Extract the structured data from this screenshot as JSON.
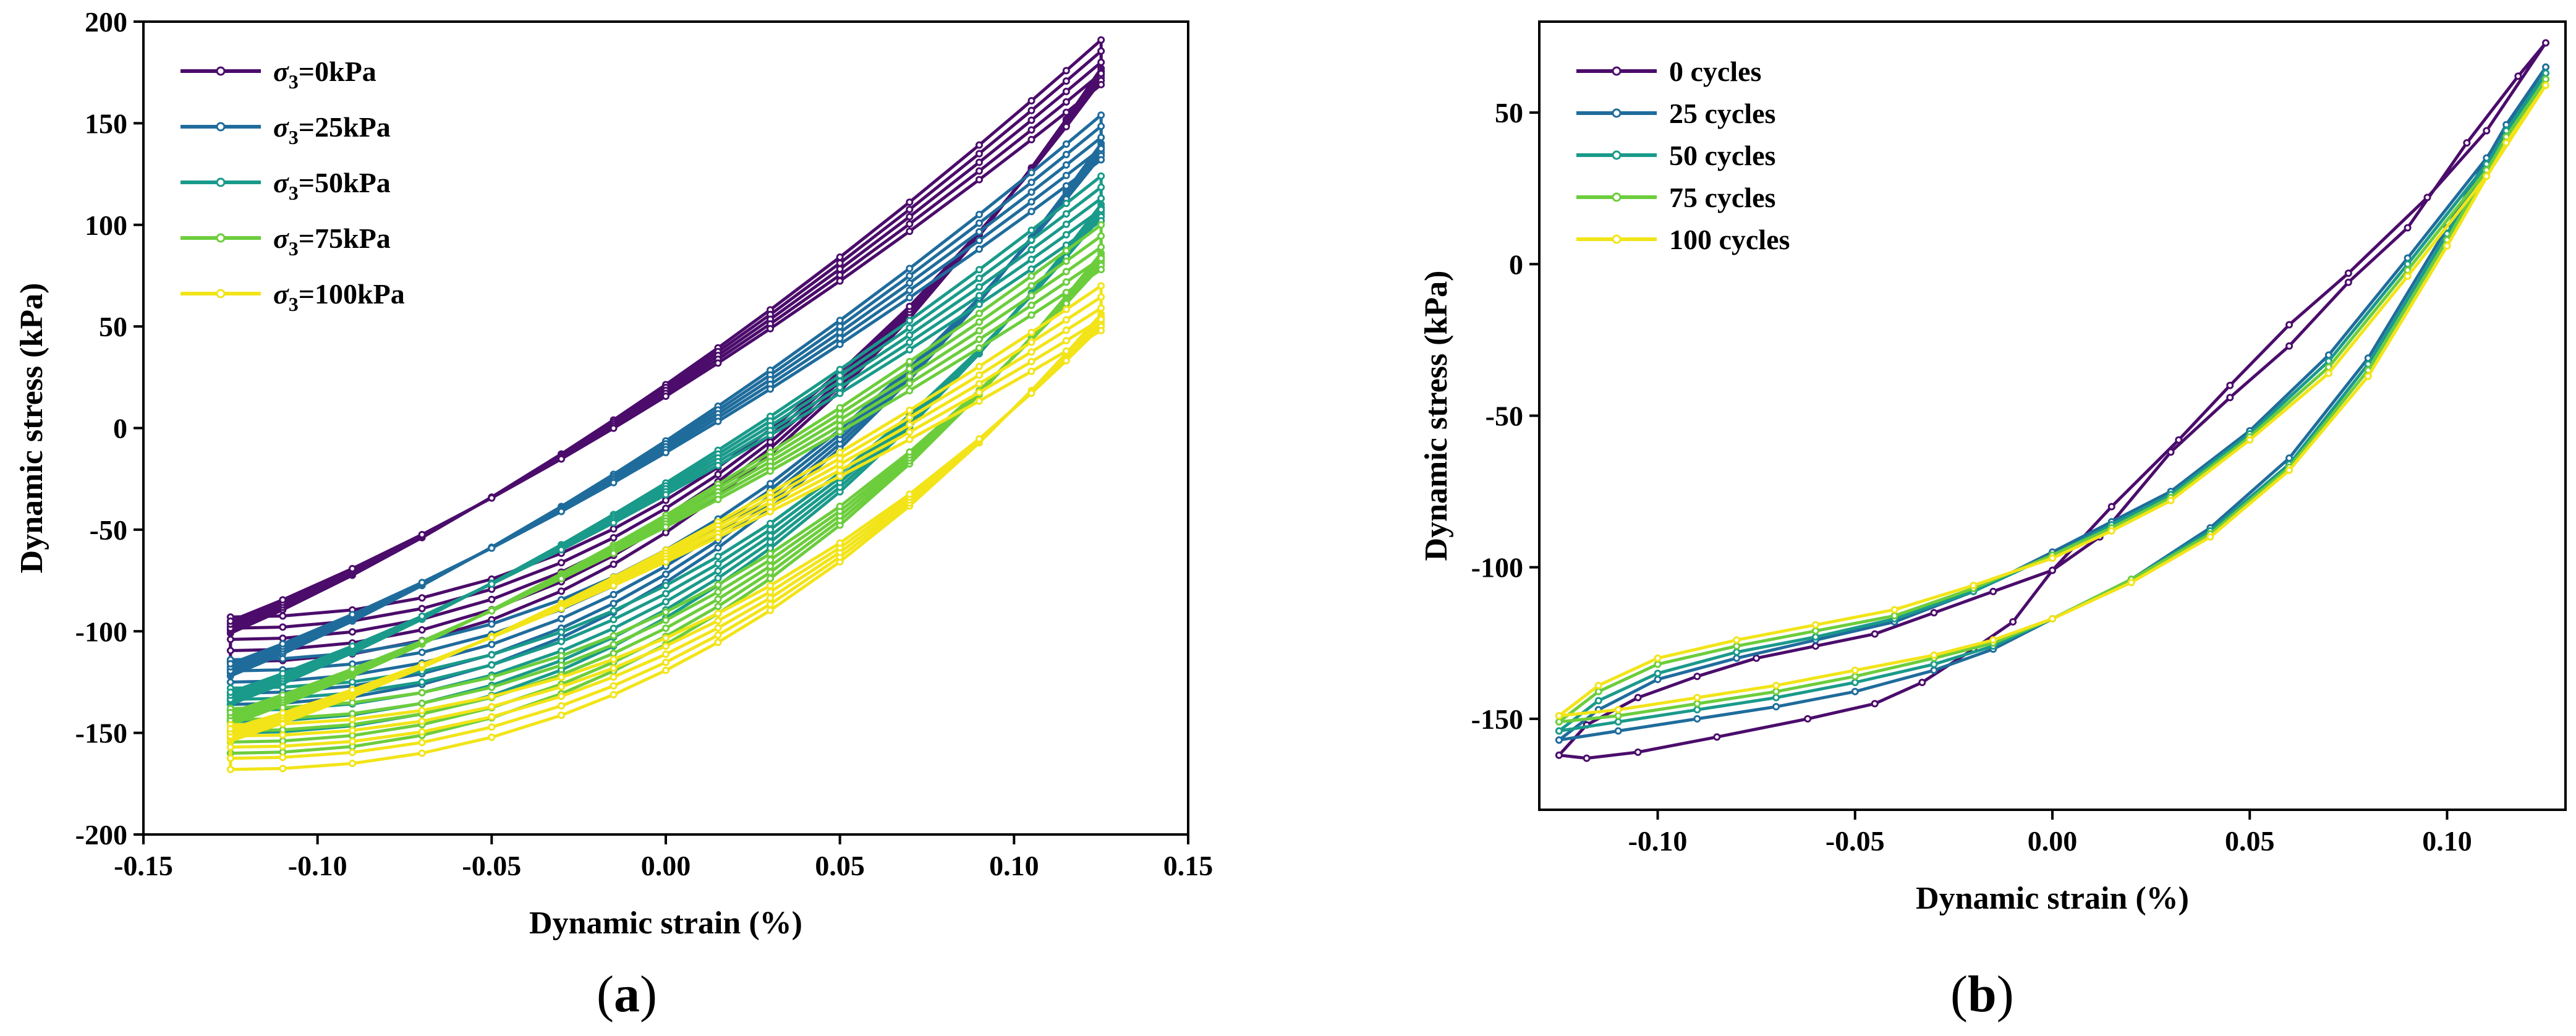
{
  "chart_data": [
    {
      "type": "line",
      "panel_label": "a",
      "title": "",
      "xlabel": "Dynamic strain (%)",
      "ylabel": "Dynamic stress (kPa)",
      "xlim": [
        -0.15,
        0.15
      ],
      "ylim": [
        -200,
        200
      ],
      "xticks": [
        -0.15,
        -0.1,
        -0.05,
        0.0,
        0.05,
        0.1,
        0.15
      ],
      "xtick_labels": [
        "-0.15",
        "-0.10",
        "-0.05",
        "0.00",
        "0.05",
        "0.10",
        "0.15"
      ],
      "yticks": [
        -200,
        -150,
        -100,
        -50,
        0,
        50,
        100,
        150,
        200
      ],
      "ytick_labels": [
        "-200",
        "-150",
        "-100",
        "-50",
        "0",
        "50",
        "100",
        "150",
        "200"
      ],
      "legend_position": "top-left",
      "series": [
        {
          "name": "σ3=0kPa",
          "legend_prefix": "σ",
          "legend_sub": "3",
          "legend_suffix": "=0kPa",
          "color": "#4b0c6b",
          "anchor": {
            "min": -107,
            "max": 185,
            "mid_hi": 50,
            "mid_lo": -35,
            "shift": 0
          }
        },
        {
          "name": "σ3=25kPa",
          "legend_prefix": "σ",
          "legend_sub": "3",
          "legend_suffix": "=25kPa",
          "color": "#1f6c9c",
          "anchor": {
            "min": -128,
            "max": 148,
            "mid_hi": 15,
            "mid_lo": -60,
            "shift": 0
          }
        },
        {
          "name": "σ3=50kPa",
          "legend_prefix": "σ",
          "legend_sub": "3",
          "legend_suffix": "=50kPa",
          "color": "#1a9a8a",
          "anchor": {
            "min": -142,
            "max": 118,
            "mid_hi": -20,
            "mid_lo": -80,
            "shift": 0
          }
        },
        {
          "name": "σ3=75kPa",
          "legend_prefix": "σ",
          "legend_sub": "3",
          "legend_suffix": "=75kPa",
          "color": "#6ccd3c",
          "anchor": {
            "min": -152,
            "max": 94,
            "mid_hi": -50,
            "mid_lo": -100,
            "shift": 0
          }
        },
        {
          "name": "σ3=100kPa",
          "legend_prefix": "σ",
          "legend_sub": "3",
          "legend_suffix": "=100kPa",
          "color": "#f2e418",
          "anchor": {
            "min": -160,
            "max": 64,
            "mid_hi": -70,
            "mid_lo": -115,
            "shift": 0
          }
        }
      ]
    },
    {
      "type": "line",
      "panel_label": "b",
      "title": "",
      "xlabel": "Dynamic strain (%)",
      "ylabel": "Dynamic stress (kPa)",
      "xlim": [
        -0.13,
        0.13
      ],
      "ylim": [
        -180,
        80
      ],
      "xticks": [
        -0.1,
        -0.05,
        0.0,
        0.05,
        0.1
      ],
      "xtick_labels": [
        "-0.10",
        "-0.05",
        "0.00",
        "0.05",
        "0.10"
      ],
      "yticks": [
        -150,
        -100,
        -50,
        0,
        50
      ],
      "ytick_labels": [
        "-150",
        "-100",
        "-50",
        "0",
        "50"
      ],
      "legend_position": "top-left",
      "series": [
        {
          "name": "0 cycles",
          "color": "#4b0c6b",
          "x": [
            -0.125,
            -0.118,
            -0.105,
            -0.085,
            -0.062,
            -0.045,
            -0.033,
            -0.02,
            -0.01,
            0.0,
            0.012,
            0.03,
            0.045,
            0.06,
            0.075,
            0.09,
            0.105,
            0.118,
            0.125,
            0.11,
            0.095,
            0.075,
            0.06,
            0.045,
            0.032,
            0.015,
            0.0,
            -0.015,
            -0.03,
            -0.045,
            -0.06,
            -0.075,
            -0.09,
            -0.105,
            -0.118,
            -0.125
          ],
          "y": [
            -162,
            -163,
            -161,
            -156,
            -150,
            -145,
            -138,
            -127,
            -118,
            -101,
            -90,
            -62,
            -44,
            -27,
            -6,
            12,
            40,
            62,
            73,
            44,
            22,
            -3,
            -20,
            -40,
            -58,
            -80,
            -101,
            -108,
            -115,
            -122,
            -126,
            -130,
            -136,
            -143,
            -152,
            -162
          ]
        },
        {
          "name": "25  cycles",
          "color": "#1f6c9c",
          "x": [
            -0.125,
            -0.11,
            -0.09,
            -0.07,
            -0.05,
            -0.03,
            -0.015,
            0.0,
            0.02,
            0.04,
            0.06,
            0.08,
            0.1,
            0.115,
            0.125,
            0.11,
            0.09,
            0.07,
            0.05,
            0.03,
            0.015,
            0.0,
            -0.02,
            -0.04,
            -0.06,
            -0.08,
            -0.1,
            -0.115,
            -0.125
          ],
          "y": [
            -157,
            -154,
            -150,
            -146,
            -141,
            -134,
            -127,
            -117,
            -104,
            -87,
            -64,
            -31,
            12,
            46,
            65,
            35,
            2,
            -30,
            -55,
            -75,
            -85,
            -95,
            -108,
            -118,
            -124,
            -130,
            -137,
            -147,
            -157
          ]
        },
        {
          "name": "50 cycles",
          "color": "#1a9a8a",
          "x": [
            -0.125,
            -0.11,
            -0.09,
            -0.07,
            -0.05,
            -0.03,
            -0.015,
            0.0,
            0.02,
            0.04,
            0.06,
            0.08,
            0.1,
            0.115,
            0.125,
            0.11,
            0.09,
            0.07,
            0.05,
            0.03,
            0.015,
            0.0,
            -0.02,
            -0.04,
            -0.06,
            -0.08,
            -0.1,
            -0.115,
            -0.125
          ],
          "y": [
            -154,
            -151,
            -147,
            -143,
            -138,
            -132,
            -126,
            -117,
            -104,
            -88,
            -66,
            -33,
            10,
            44,
            63,
            33,
            0,
            -32,
            -56,
            -76,
            -86,
            -96,
            -108,
            -117,
            -123,
            -128,
            -135,
            -144,
            -154
          ]
        },
        {
          "name": "75 cycles",
          "color": "#6ccd3c",
          "x": [
            -0.125,
            -0.11,
            -0.09,
            -0.07,
            -0.05,
            -0.03,
            -0.015,
            0.0,
            0.02,
            0.04,
            0.06,
            0.08,
            0.1,
            0.115,
            0.125,
            0.11,
            0.09,
            0.07,
            0.05,
            0.03,
            0.015,
            0.0,
            -0.02,
            -0.04,
            -0.06,
            -0.08,
            -0.1,
            -0.115,
            -0.125
          ],
          "y": [
            -151,
            -149,
            -145,
            -141,
            -136,
            -130,
            -125,
            -117,
            -104,
            -89,
            -67,
            -35,
            8,
            42,
            61,
            31,
            -2,
            -34,
            -57,
            -77,
            -87,
            -96,
            -107,
            -116,
            -121,
            -126,
            -132,
            -141,
            -151
          ]
        },
        {
          "name": "100 cycles",
          "color": "#f2e418",
          "x": [
            -0.125,
            -0.11,
            -0.09,
            -0.07,
            -0.05,
            -0.03,
            -0.015,
            0.0,
            0.02,
            0.04,
            0.06,
            0.08,
            0.1,
            0.115,
            0.125,
            0.11,
            0.09,
            0.07,
            0.05,
            0.03,
            0.015,
            0.0,
            -0.02,
            -0.04,
            -0.06,
            -0.08,
            -0.1,
            -0.115,
            -0.125
          ],
          "y": [
            -149,
            -147,
            -143,
            -139,
            -134,
            -129,
            -124,
            -117,
            -105,
            -90,
            -68,
            -37,
            6,
            40,
            59,
            29,
            -4,
            -36,
            -58,
            -78,
            -88,
            -97,
            -106,
            -114,
            -119,
            -124,
            -130,
            -139,
            -149
          ]
        }
      ]
    }
  ],
  "captions": {
    "a": "a",
    "b": "b"
  }
}
